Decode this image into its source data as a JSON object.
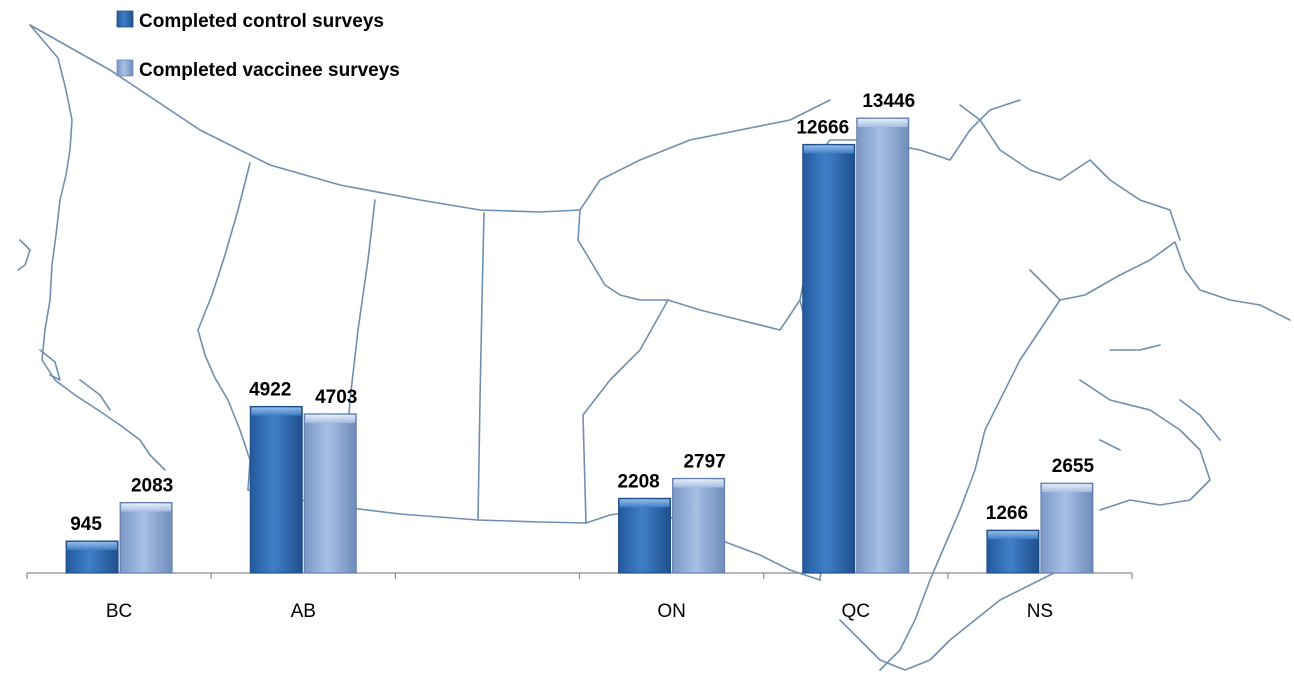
{
  "chart_data": {
    "type": "bar",
    "categories": [
      "BC",
      "AB",
      "",
      "ON",
      "QC",
      "NS"
    ],
    "series": [
      {
        "name": "Completed control surveys",
        "color": "#2f68b0",
        "values": [
          945,
          4922,
          null,
          2208,
          12666,
          1266
        ]
      },
      {
        "name": "Completed vaccinee surveys",
        "color": "#8ba8d6",
        "values": [
          2083,
          4703,
          null,
          2797,
          13446,
          2655
        ]
      }
    ],
    "ylim": [
      0,
      15000
    ],
    "grid": false,
    "legend_position": "top-left",
    "background": "map of Canada outline"
  }
}
